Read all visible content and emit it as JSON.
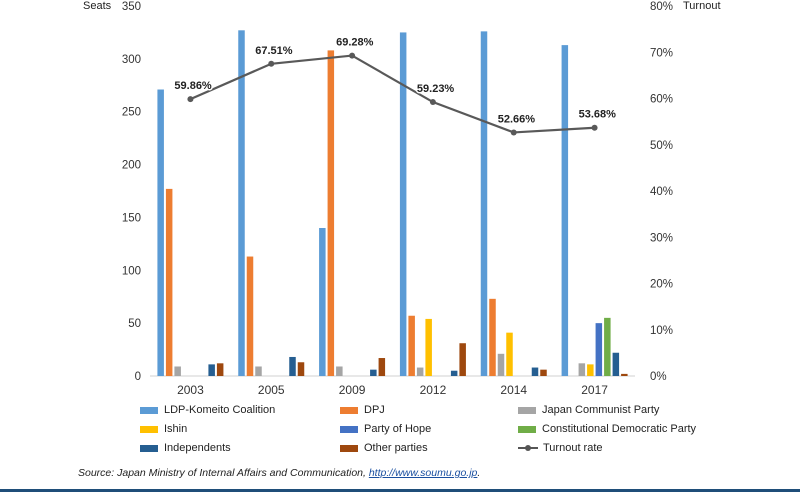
{
  "chart_data": {
    "type": "bar",
    "title": "",
    "ylabel_left": "Seats",
    "ylabel_right": "Turnout",
    "ylim_left": [
      0,
      350
    ],
    "ylim_right": [
      0,
      80
    ],
    "yticks_left": [
      "0",
      "50",
      "100",
      "150",
      "200",
      "250",
      "300",
      "350"
    ],
    "yticks_right": [
      "0%",
      "10%",
      "20%",
      "30%",
      "40%",
      "50%",
      "60%",
      "70%",
      "80%"
    ],
    "categories": [
      "2003",
      "2005",
      "2009",
      "2012",
      "2014",
      "2017"
    ],
    "series": [
      {
        "name": "LDP-Komeito Coalition",
        "color": "#5b9bd5",
        "values": [
          271,
          327,
          140,
          325,
          326,
          313
        ]
      },
      {
        "name": "DPJ",
        "color": "#ed7d31",
        "values": [
          177,
          113,
          308,
          57,
          73,
          0
        ]
      },
      {
        "name": "Japan Communist Party",
        "color": "#a5a5a5",
        "values": [
          9,
          9,
          9,
          8,
          21,
          12
        ]
      },
      {
        "name": "Ishin",
        "color": "#ffc000",
        "values": [
          0,
          0,
          0,
          54,
          41,
          11
        ]
      },
      {
        "name": "Party of Hope",
        "color": "#4472c4",
        "values": [
          0,
          0,
          0,
          0,
          0,
          50
        ]
      },
      {
        "name": "Constitutional Democratic Party",
        "color": "#70ad47",
        "values": [
          0,
          0,
          0,
          0,
          0,
          55
        ]
      },
      {
        "name": "Independents",
        "color": "#255e91",
        "values": [
          11,
          18,
          6,
          5,
          8,
          22
        ]
      },
      {
        "name": "Other parties",
        "color": "#9e480e",
        "values": [
          12,
          13,
          17,
          31,
          6,
          2
        ]
      }
    ],
    "line_series": {
      "name": "Turnout rate",
      "color": "#595959",
      "values": [
        59.86,
        67.51,
        69.28,
        59.23,
        52.66,
        53.68
      ],
      "labels": [
        "59.86%",
        "67.51%",
        "69.28%",
        "59.23%",
        "52.66%",
        "53.68%"
      ]
    }
  },
  "legend": [
    {
      "label": "LDP-Komeito Coalition",
      "color": "#5b9bd5",
      "kind": "bar"
    },
    {
      "label": "DPJ",
      "color": "#ed7d31",
      "kind": "bar"
    },
    {
      "label": "Japan Communist Party",
      "color": "#a5a5a5",
      "kind": "bar"
    },
    {
      "label": "Ishin",
      "color": "#ffc000",
      "kind": "bar"
    },
    {
      "label": "Party of Hope",
      "color": "#4472c4",
      "kind": "bar"
    },
    {
      "label": "Constitutional Democratic Party",
      "color": "#70ad47",
      "kind": "bar"
    },
    {
      "label": "Independents",
      "color": "#255e91",
      "kind": "bar"
    },
    {
      "label": "Other parties",
      "color": "#9e480e",
      "kind": "bar"
    },
    {
      "label": "Turnout rate",
      "color": "#595959",
      "kind": "line"
    }
  ],
  "source": {
    "prefix": "Source: Japan Ministry of Internal Affairs and Communication, ",
    "link": "http://www.soumu.go.jp",
    "suffix": "."
  }
}
